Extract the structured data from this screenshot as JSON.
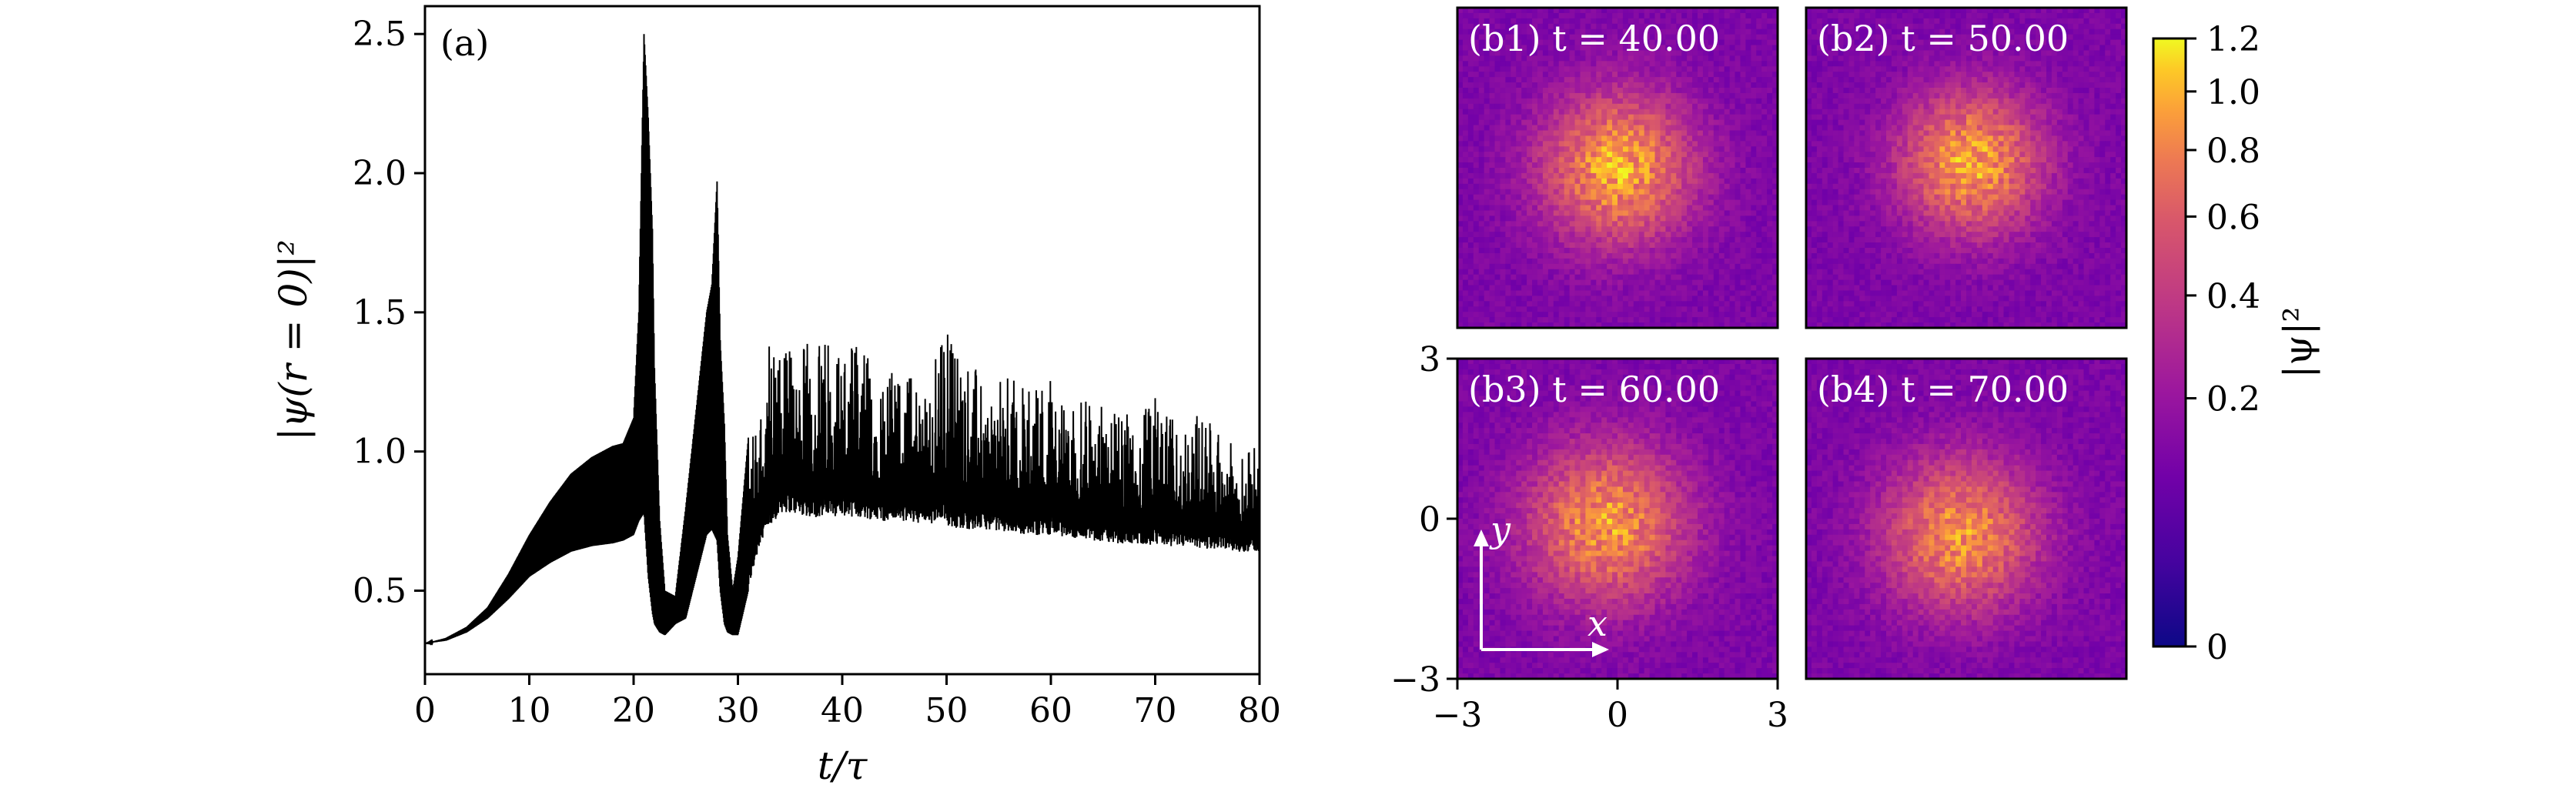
{
  "chart_data": [
    {
      "type": "line",
      "panel_label": "(a)",
      "xlabel": "t/τ",
      "ylabel": "|ψ(r = 0)|²",
      "xlim": [
        0,
        80
      ],
      "ylim": [
        0.2,
        2.6
      ],
      "xticks": [
        0,
        10,
        20,
        30,
        40,
        50,
        60,
        70,
        80
      ],
      "yticks": [
        0.5,
        1.0,
        1.5,
        2.0,
        2.5
      ],
      "color": "#000000",
      "series": [
        {
          "x": [
            0,
            2,
            4,
            6,
            8,
            10,
            12,
            14,
            16,
            18,
            19,
            20,
            20.5,
            21,
            21.4,
            21.8,
            22,
            22.5,
            23,
            24,
            25,
            26,
            27,
            27.5,
            28,
            28.3,
            28.7,
            29,
            29.5,
            30,
            31,
            32,
            33,
            34,
            35,
            36,
            38,
            40,
            42,
            44,
            46,
            48,
            50,
            52,
            54,
            56,
            58,
            60,
            62,
            64,
            66,
            68,
            70,
            72,
            74,
            76,
            78,
            80
          ],
          "upper": [
            0.31,
            0.33,
            0.37,
            0.44,
            0.56,
            0.7,
            0.82,
            0.92,
            0.98,
            1.02,
            1.03,
            1.12,
            1.5,
            2.5,
            2.2,
            1.8,
            1.3,
            0.75,
            0.5,
            0.48,
            0.8,
            1.15,
            1.5,
            1.6,
            1.97,
            1.4,
            1.1,
            0.7,
            0.5,
            0.62,
            1.05,
            1.2,
            1.38,
            1.35,
            1.45,
            1.38,
            1.42,
            1.42,
            1.38,
            1.3,
            1.3,
            1.26,
            1.47,
            1.35,
            1.22,
            1.28,
            1.24,
            1.3,
            1.16,
            1.2,
            1.14,
            1.13,
            1.2,
            1.1,
            1.15,
            1.08,
            1.0,
            1.02
          ],
          "lower": [
            0.31,
            0.32,
            0.35,
            0.4,
            0.47,
            0.55,
            0.6,
            0.64,
            0.66,
            0.67,
            0.68,
            0.7,
            0.75,
            0.78,
            0.55,
            0.42,
            0.38,
            0.35,
            0.34,
            0.38,
            0.4,
            0.55,
            0.7,
            0.72,
            0.68,
            0.5,
            0.38,
            0.35,
            0.34,
            0.34,
            0.5,
            0.65,
            0.72,
            0.78,
            0.78,
            0.77,
            0.76,
            0.77,
            0.76,
            0.75,
            0.75,
            0.74,
            0.73,
            0.72,
            0.72,
            0.71,
            0.7,
            0.7,
            0.69,
            0.68,
            0.67,
            0.67,
            0.66,
            0.66,
            0.65,
            0.65,
            0.64,
            0.64
          ]
        }
      ]
    },
    {
      "type": "heatmap",
      "colormap": "plasma",
      "colorbar_label": "|ψ|²",
      "colorbar_ticks": [
        0,
        0.2,
        0.4,
        0.6,
        0.8,
        1.0,
        1.2
      ],
      "colorbar_tick_labels": [
        "0",
        "0.2",
        "0.4",
        "0.6",
        "0.8",
        "1.0",
        "1.2"
      ],
      "colorbar_range": [
        0,
        1.2
      ],
      "xlim": [
        -3,
        3
      ],
      "ylim": [
        -3,
        3
      ],
      "xticks": [
        "−3",
        "0",
        "3"
      ],
      "yticks": [
        "−3",
        "0",
        "3"
      ],
      "arrow_labels": {
        "x": "x",
        "y": "y"
      },
      "panels": [
        {
          "label": "(b1) t = 40.00",
          "center": [
            0,
            0
          ],
          "peak": 0.85,
          "width": 0.9
        },
        {
          "label": "(b2) t = 50.00",
          "center": [
            0.1,
            0.1
          ],
          "peak": 0.82,
          "width": 0.85
        },
        {
          "label": "(b3) t = 60.00",
          "center": [
            -0.2,
            -0.1
          ],
          "peak": 0.78,
          "width": 0.95
        },
        {
          "label": "(b4) t = 70.00",
          "center": [
            -0.1,
            -0.3
          ],
          "peak": 0.75,
          "width": 0.92
        }
      ]
    }
  ]
}
